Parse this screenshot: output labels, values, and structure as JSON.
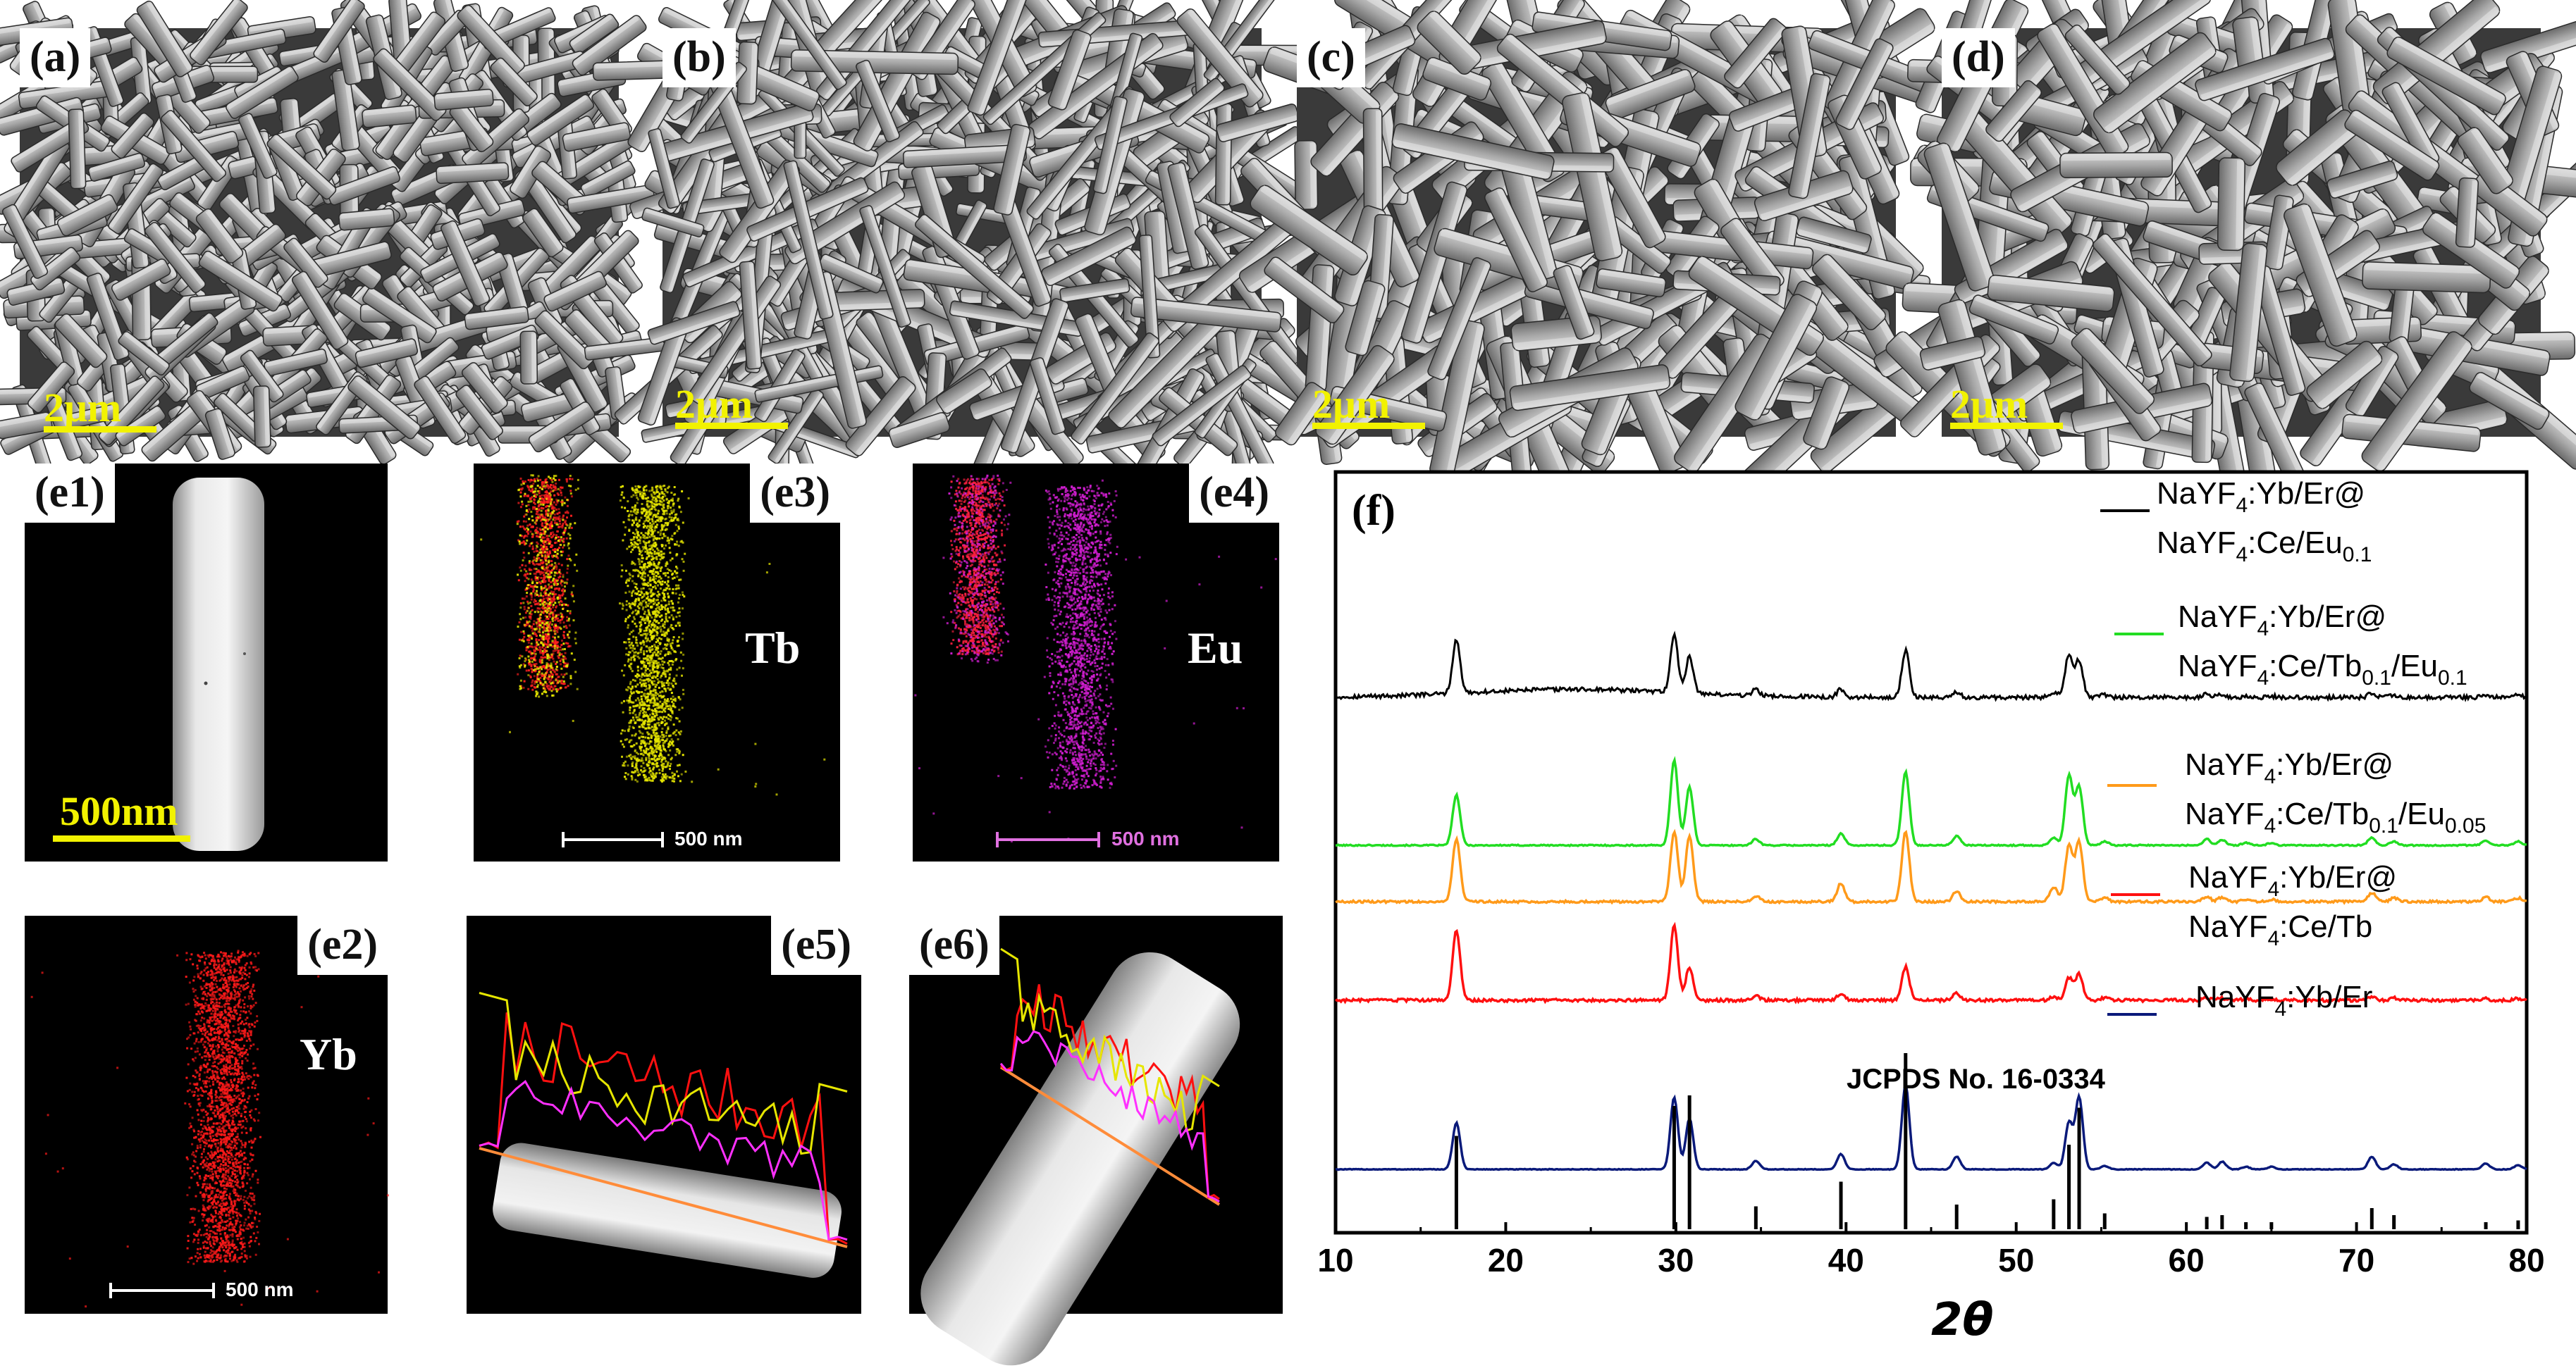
{
  "colors": {
    "scale_yellow": "#f2f200",
    "tb_yellow": "#e6e600",
    "eu_magenta": "#d21ed2",
    "yb_red": "#ff1a1a",
    "black_curve": "#000000",
    "green_curve": "#22dd22",
    "orange_curve": "#ff9a1a",
    "red_curve": "#ff1010",
    "navy_curve": "#0a1a7a"
  },
  "sem": [
    {
      "label": "(a)",
      "scale": "2μm"
    },
    {
      "label": "(b)",
      "scale": "2μm"
    },
    {
      "label": "(c)",
      "scale": "2μm"
    },
    {
      "label": "(d)",
      "scale": "2μm"
    }
  ],
  "edx": {
    "e1": {
      "label": "(e1)",
      "scale": "500nm"
    },
    "e2": {
      "label": "(e2)",
      "element": "Yb",
      "scale": "500 nm"
    },
    "e3": {
      "label": "(e3)",
      "element": "Tb",
      "scale": "500 nm"
    },
    "e4": {
      "label": "(e4)",
      "element": "Eu",
      "scale": "500 nm"
    },
    "e5": {
      "label": "(e5)"
    },
    "e6": {
      "label": "(e6)"
    }
  },
  "chart_data": {
    "type": "line",
    "panel_label": "(f)",
    "xlabel": "2θ",
    "xlim": [
      10,
      80
    ],
    "xticks": [
      10,
      20,
      30,
      40,
      50,
      60,
      70,
      80
    ],
    "y_axis": "stacked intensity (arbitrary units, no tick labels)",
    "peaks_2theta": [
      17.1,
      29.9,
      30.8,
      34.7,
      39.7,
      43.5,
      46.5,
      52.2,
      53.1,
      53.7,
      55.2,
      61.2,
      62.1,
      63.5,
      65.0,
      70.9,
      72.2,
      77.6,
      79.5
    ],
    "reference": {
      "name": "JCPDS No. 16-0334",
      "peaks": [
        {
          "x": 17.1,
          "h": 0.53
        },
        {
          "x": 29.9,
          "h": 0.7
        },
        {
          "x": 30.8,
          "h": 0.76
        },
        {
          "x": 34.7,
          "h": 0.13
        },
        {
          "x": 39.7,
          "h": 0.27
        },
        {
          "x": 43.5,
          "h": 1.0
        },
        {
          "x": 46.5,
          "h": 0.14
        },
        {
          "x": 52.2,
          "h": 0.17
        },
        {
          "x": 53.1,
          "h": 0.48
        },
        {
          "x": 53.7,
          "h": 0.69
        },
        {
          "x": 55.2,
          "h": 0.09
        },
        {
          "x": 61.2,
          "h": 0.07
        },
        {
          "x": 62.1,
          "h": 0.08
        },
        {
          "x": 63.5,
          "h": 0.04
        },
        {
          "x": 65.0,
          "h": 0.04
        },
        {
          "x": 70.9,
          "h": 0.12
        },
        {
          "x": 72.2,
          "h": 0.08
        },
        {
          "x": 77.6,
          "h": 0.04
        },
        {
          "x": 79.5,
          "h": 0.05
        }
      ]
    },
    "series": [
      {
        "name": "NaYF4:Yb/Er@NaYF4:Ce/Eu0.1",
        "color": "#000000",
        "legend_l1": "NaYF",
        "legend_l1_sub": "4",
        "legend_l1_tail": ":Yb/Er@",
        "legend_l2": "NaYF",
        "legend_l2_sub": "4",
        "legend_l2_mid": ":Ce/Eu",
        "legend_l2_sub2": "0.1",
        "legend_l2_tail": "",
        "peak_heights": [
          0.8,
          0.85,
          0.55,
          0.1,
          0.12,
          0.7,
          0.08,
          0.08,
          0.65,
          0.55,
          0.04,
          0.05,
          0.05,
          0.02,
          0.02,
          0.06,
          0.03,
          0.03,
          0.03
        ],
        "noise": 0.03,
        "hump": true
      },
      {
        "name": "NaYF4:Yb/Er@NaYF4:Ce/Tb0.1/Eu0.1",
        "color": "#22dd22",
        "legend_l1": "NaYF",
        "legend_l1_sub": "4",
        "legend_l1_tail": ":Yb/Er@",
        "legend_l2": "NaYF",
        "legend_l2_sub": "4",
        "legend_l2_mid": ":Ce/Tb",
        "legend_l2_sub2": "0.1",
        "legend_l2_tail": "/Eu0.1",
        "peak_heights": [
          0.65,
          1.1,
          0.75,
          0.08,
          0.15,
          0.95,
          0.12,
          0.1,
          0.9,
          0.75,
          0.05,
          0.08,
          0.07,
          0.03,
          0.03,
          0.1,
          0.05,
          0.06,
          0.05
        ],
        "noise": 0.008,
        "hump": false
      },
      {
        "name": "NaYF4:Yb/Er@NaYF4:Ce/Tb0.1/Eu0.05",
        "color": "#ff9a1a",
        "legend_l1": "NaYF",
        "legend_l1_sub": "4",
        "legend_l1_tail": ":Yb/Er@",
        "legend_l2": "NaYF",
        "legend_l2_sub": "4",
        "legend_l2_mid": ":Ce/Tb",
        "legend_l2_sub2": "0.1",
        "legend_l2_tail": "/Eu0.05",
        "peak_heights": [
          0.85,
          0.95,
          0.9,
          0.08,
          0.25,
          0.95,
          0.14,
          0.2,
          0.75,
          0.8,
          0.05,
          0.07,
          0.06,
          0.03,
          0.03,
          0.12,
          0.05,
          0.06,
          0.05
        ],
        "noise": 0.015,
        "hump": false
      },
      {
        "name": "NaYF4:Yb/Er@NaYF4:Ce/Tb",
        "color": "#ff1010",
        "legend_l1": "NaYF",
        "legend_l1_sub": "4",
        "legend_l1_tail": ":Yb/Er@",
        "legend_l2": "NaYF",
        "legend_l2_sub": "4",
        "legend_l2_mid": ":Ce/Tb",
        "legend_l2_sub2": "",
        "legend_l2_tail": "",
        "peak_heights": [
          0.95,
          1.0,
          0.45,
          0.06,
          0.08,
          0.45,
          0.1,
          0.05,
          0.3,
          0.35,
          0.03,
          0.03,
          0.03,
          0.02,
          0.02,
          0.05,
          0.03,
          0.02,
          0.02
        ],
        "noise": 0.02,
        "hump": false
      },
      {
        "name": "NaYF4:Yb/Er",
        "color": "#0a1a7a",
        "legend_l1": "NaYF",
        "legend_l1_sub": "4",
        "legend_l1_tail": ":Yb/Er",
        "peak_heights": [
          0.55,
          0.85,
          0.6,
          0.1,
          0.18,
          1.0,
          0.15,
          0.08,
          0.55,
          0.85,
          0.04,
          0.08,
          0.09,
          0.03,
          0.03,
          0.15,
          0.06,
          0.07,
          0.05
        ],
        "noise": 0.004,
        "hump": false
      }
    ]
  }
}
